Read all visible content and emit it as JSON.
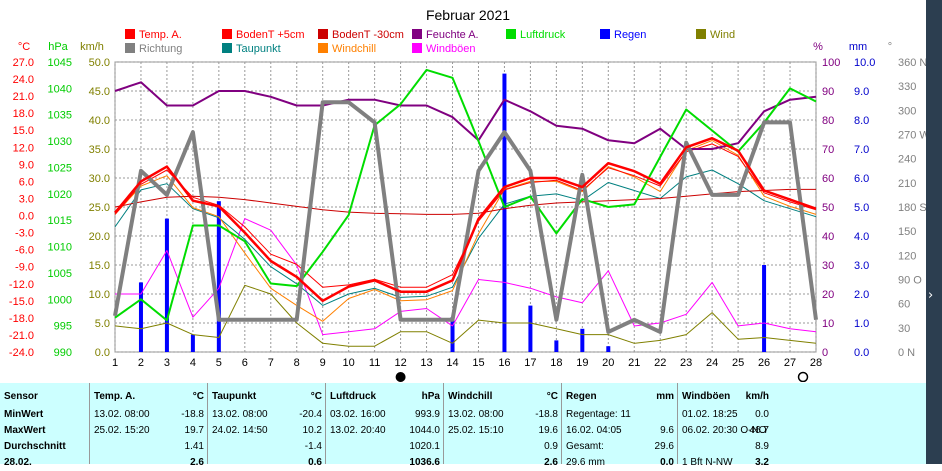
{
  "chart_data": {
    "type": "line",
    "title": "Februar 2021",
    "x": [
      1,
      2,
      3,
      4,
      5,
      6,
      7,
      8,
      9,
      10,
      11,
      12,
      13,
      14,
      15,
      16,
      17,
      18,
      19,
      20,
      21,
      22,
      23,
      24,
      25,
      26,
      27,
      28
    ],
    "xlim": [
      1,
      28
    ],
    "moon_phases": [
      {
        "day": 12,
        "phase": "new"
      },
      {
        "day": 27.5,
        "phase": "full"
      }
    ],
    "axes": {
      "temp": {
        "label": "°C",
        "ylim": [
          -24,
          27
        ],
        "ticks": [
          "27.0",
          "24.0",
          "21.0",
          "18.0",
          "15.0",
          "12.0",
          "9.0",
          "6.0",
          "3.0",
          "0.0",
          "-3.0",
          "-6.0",
          "-9.0",
          "-12.0",
          "-15.0",
          "-18.0",
          "-21.0",
          "-24.0"
        ],
        "color": "#ff0000"
      },
      "pressure": {
        "label": "hPa",
        "ylim": [
          990,
          1045
        ],
        "ticks": [
          "1045",
          "1040",
          "1035",
          "1030",
          "1025",
          "1020",
          "1015",
          "1010",
          "1005",
          "1000",
          "995",
          "990"
        ],
        "color": "#00cc00"
      },
      "kmh": {
        "label": "km/h",
        "ylim": [
          0,
          50
        ],
        "ticks": [
          "50.0",
          "45.0",
          "40.0",
          "35.0",
          "30.0",
          "25.0",
          "20.0",
          "15.0",
          "10.0",
          "5.0",
          "0.0"
        ],
        "color": "#808000"
      },
      "percent": {
        "label": "%",
        "ylim": [
          0,
          100
        ],
        "ticks": [
          "100",
          "90",
          "80",
          "70",
          "60",
          "50",
          "40",
          "30",
          "20",
          "10",
          "0"
        ],
        "color": "#800080"
      },
      "mm": {
        "label": "mm",
        "ylim": [
          0,
          10
        ],
        "ticks": [
          "10.0",
          "9.0",
          "8.0",
          "7.0",
          "6.0",
          "5.0",
          "4.0",
          "3.0",
          "2.0",
          "1.0",
          "0.0"
        ],
        "color": "#0000cc"
      },
      "direction": {
        "label": "°",
        "ylim": [
          0,
          360
        ],
        "ticks": [
          "360 N",
          "330",
          "300",
          "270 W",
          "240",
          "210",
          "180 S",
          "150",
          "120",
          "90 O",
          "60",
          "30",
          "0 N"
        ],
        "color": "#808080"
      }
    },
    "legend": [
      {
        "name": "Temp. A.",
        "color": "#ff0000"
      },
      {
        "name": "BodenT +5cm",
        "color": "#ff0000"
      },
      {
        "name": "BodenT -30cm",
        "color": "#cc0000"
      },
      {
        "name": "Feuchte A.",
        "color": "#800080"
      },
      {
        "name": "Luftdruck",
        "color": "#00dd00"
      },
      {
        "name": "Regen",
        "color": "#0000ff"
      },
      {
        "name": "Wind",
        "color": "#808000"
      },
      {
        "name": "Richtung",
        "color": "#808080"
      },
      {
        "name": "Taupunkt",
        "color": "#008080"
      },
      {
        "name": "Windchill",
        "color": "#ff8000"
      },
      {
        "name": "Windböen",
        "color": "#ff00ff"
      }
    ],
    "series": [
      {
        "name": "Temp. A.",
        "axis": "temp",
        "color": "#ff0000",
        "width": 2.5,
        "values": [
          0.5,
          6.0,
          8.6,
          2.6,
          1.6,
          -3.0,
          -8.0,
          -10.8,
          -15.0,
          -12.5,
          -11.4,
          -13.4,
          -13.4,
          -11.4,
          -0.6,
          5.0,
          6.6,
          6.6,
          5.0,
          9.2,
          7.8,
          5.6,
          12.0,
          13.6,
          11.4,
          4.4,
          2.8,
          1.2
        ]
      },
      {
        "name": "BodenT +5cm",
        "axis": "temp",
        "color": "#ff0000",
        "width": 1,
        "values": [
          0.2,
          5.5,
          8.0,
          3.2,
          1.8,
          -2.0,
          -6.8,
          -8.6,
          -12.6,
          -12.2,
          -11.2,
          -12.6,
          -12.6,
          -10.4,
          -1.0,
          4.5,
          5.8,
          6.2,
          4.4,
          8.4,
          7.0,
          5.2,
          11.2,
          12.6,
          10.4,
          4.0,
          2.4,
          1.0
        ]
      },
      {
        "name": "BodenT -30cm",
        "axis": "temp",
        "color": "#cc0000",
        "width": 1,
        "values": [
          1.5,
          2.4,
          3.2,
          3.4,
          3.2,
          2.8,
          2.2,
          1.6,
          1.0,
          0.6,
          0.4,
          0.3,
          0.2,
          0.2,
          0.4,
          1.2,
          1.8,
          2.2,
          2.4,
          2.6,
          2.8,
          3.0,
          3.4,
          3.8,
          4.2,
          4.4,
          4.6,
          4.6
        ]
      },
      {
        "name": "Taupunkt",
        "axis": "temp",
        "color": "#008080",
        "width": 1,
        "values": [
          -2.0,
          4.5,
          5.6,
          1.2,
          -0.4,
          -4.2,
          -9.0,
          -12.0,
          -15.8,
          -13.8,
          -12.8,
          -14.4,
          -14.2,
          -12.6,
          -4.0,
          2.0,
          3.4,
          3.8,
          2.6,
          5.8,
          4.4,
          3.0,
          6.8,
          8.0,
          5.6,
          2.6,
          1.2,
          -0.2
        ]
      },
      {
        "name": "Windchill",
        "axis": "temp",
        "color": "#ff8000",
        "width": 1,
        "values": [
          0.2,
          5.2,
          7.0,
          1.4,
          -0.2,
          -6.6,
          -12.8,
          -15.8,
          -18.6,
          -14.6,
          -13.0,
          -15.0,
          -14.8,
          -13.2,
          -3.2,
          4.6,
          6.0,
          6.0,
          4.2,
          8.6,
          6.8,
          4.2,
          11.4,
          13.2,
          10.6,
          3.4,
          1.6,
          0.2
        ]
      },
      {
        "name": "Feuchte A.",
        "axis": "percent",
        "color": "#800080",
        "width": 2,
        "values": [
          90,
          93,
          85,
          85,
          90,
          90,
          88,
          85,
          85,
          87,
          87,
          85,
          85,
          81,
          73,
          87,
          83,
          78,
          77,
          73,
          72,
          77,
          70,
          70,
          72,
          83,
          87,
          88
        ]
      },
      {
        "name": "Luftdruck",
        "axis": "pressure",
        "color": "#00dd00",
        "width": 2,
        "values": [
          996.5,
          1000.0,
          996.0,
          1014.0,
          1014.0,
          1011.0,
          1003.0,
          1002.5,
          1009.0,
          1016.0,
          1033.0,
          1037.0,
          1043.5,
          1042.0,
          1030.0,
          1017.5,
          1019.5,
          1012.5,
          1019.0,
          1017.5,
          1018.0,
          1027.0,
          1036.0,
          1032.0,
          1028.0,
          1033.5,
          1040.0,
          1037.5
        ]
      },
      {
        "name": "Wind",
        "axis": "kmh",
        "color": "#808000",
        "width": 1,
        "values": [
          4.5,
          4.0,
          5.0,
          3.0,
          2.5,
          11.5,
          10.0,
          5.0,
          1.5,
          1.0,
          1.0,
          3.5,
          3.5,
          1.5,
          5.5,
          5.0,
          5.0,
          4.0,
          3.0,
          3.0,
          1.5,
          2.0,
          3.0,
          6.8,
          2.2,
          2.5,
          2.0,
          1.5
        ]
      },
      {
        "name": "Windböen",
        "axis": "kmh",
        "color": "#ff00ff",
        "width": 1,
        "values": [
          10.0,
          10.0,
          17.5,
          6.0,
          11.0,
          23.0,
          21.0,
          15.0,
          3.0,
          3.5,
          4.0,
          7.0,
          7.5,
          4.5,
          12.5,
          12.0,
          11.0,
          9.5,
          8.5,
          14.0,
          4.5,
          5.0,
          6.5,
          12.0,
          4.5,
          5.0,
          4.0,
          3.5
        ]
      },
      {
        "name": "Richtung",
        "axis": "direction",
        "color": "#808080",
        "width": 4,
        "values": [
          45,
          225,
          195,
          273,
          40,
          40,
          40,
          40,
          310,
          310,
          285,
          40,
          40,
          40,
          225,
          273,
          225,
          40,
          220,
          25,
          40,
          25,
          260,
          195,
          195,
          285,
          285,
          40
        ]
      }
    ],
    "rain": {
      "name": "Regen",
      "axis": "mm",
      "color": "#0000ff",
      "values": [
        0,
        2.4,
        4.6,
        0.6,
        5.2,
        0,
        0,
        0,
        0,
        0,
        0,
        0,
        0,
        1.2,
        0,
        9.6,
        1.6,
        0.4,
        0.8,
        0.2,
        0,
        0,
        0,
        0,
        0,
        3.0,
        0,
        0
      ]
    }
  },
  "stats": {
    "columns": [
      {
        "title": "Sensor",
        "unit": "",
        "rows": [
          [
            "MinWert",
            ""
          ],
          [
            "MaxWert",
            ""
          ],
          [
            "Durchschnitt",
            ""
          ],
          [
            "28.02.",
            ""
          ]
        ]
      },
      {
        "title": "Temp. A.",
        "unit": "°C",
        "rows": [
          [
            "13.02. 08:00",
            "-18.8"
          ],
          [
            "25.02. 15:20",
            "19.7"
          ],
          [
            "",
            "1.41"
          ],
          [
            "",
            "2.6"
          ]
        ]
      },
      {
        "title": "Taupunkt",
        "unit": "°C",
        "rows": [
          [
            "13.02. 08:00",
            "-20.4"
          ],
          [
            "24.02. 14:50",
            "10.2"
          ],
          [
            "",
            "-1.4"
          ],
          [
            "",
            "0.6"
          ]
        ]
      },
      {
        "title": "Luftdruck",
        "unit": "hPa",
        "rows": [
          [
            "03.02. 16:00",
            "993.9"
          ],
          [
            "13.02. 20:40",
            "1044.0"
          ],
          [
            "",
            "1020.1"
          ],
          [
            "",
            "1036.6"
          ]
        ]
      },
      {
        "title": "Windchill",
        "unit": "°C",
        "rows": [
          [
            "13.02. 08:00",
            "-18.8"
          ],
          [
            "25.02. 15:10",
            "19.6"
          ],
          [
            "",
            "0.9"
          ],
          [
            "",
            "2.6"
          ]
        ]
      },
      {
        "title": "Regen",
        "unit": "mm",
        "rows": [
          [
            "Regentage: 11",
            ""
          ],
          [
            "16.02. 04:05",
            "9.6"
          ],
          [
            "Gesamt:",
            "29.6"
          ],
          [
            "29.6 mm",
            "0.0"
          ]
        ]
      },
      {
        "title": "Windböen",
        "unit": "km/h",
        "rows": [
          [
            "01.02. 18:25",
            "0.0"
          ],
          [
            "06.02. 20:30 O-NO",
            "46.7"
          ],
          [
            "",
            "8.9"
          ],
          [
            "1 Bft N-NW",
            "3.2"
          ]
        ]
      }
    ]
  }
}
